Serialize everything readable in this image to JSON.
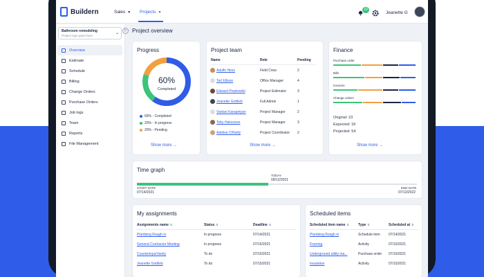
{
  "app": {
    "name": "Buildern"
  },
  "topnav": {
    "sales": "Sales",
    "projects": "Projects",
    "notifications_count": "10",
    "user_name": "Jeanette G"
  },
  "project_select": {
    "name": "Bathroom remodeling",
    "placeholder": "Project type goes here"
  },
  "page_title": "Project overview",
  "sidebar": {
    "items": [
      {
        "label": "Overview",
        "active": true
      },
      {
        "label": "Estimate"
      },
      {
        "label": "Schedule"
      },
      {
        "label": "Billing"
      },
      {
        "label": "Change Orders"
      },
      {
        "label": "Purchase Orders"
      },
      {
        "label": "Job logs"
      },
      {
        "label": "Team"
      },
      {
        "label": "Reports"
      },
      {
        "label": "File Management"
      }
    ]
  },
  "progress": {
    "title": "Progress",
    "center_value": "60%",
    "center_label": "Completed",
    "legend": [
      {
        "label": "60% - Completed",
        "color": "#2f5ce8"
      },
      {
        "label": "20% - In progress",
        "color": "#3bc47a"
      },
      {
        "label": "20% - Pending",
        "color": "#f2a03d"
      }
    ],
    "segments": [
      0.6,
      0.2,
      0.2
    ],
    "show_more": "Show more"
  },
  "team": {
    "title": "Project team",
    "headers": {
      "name": "Name",
      "role": "Role",
      "pending": "Pending"
    },
    "rows": [
      {
        "name": "Adolfo Hess",
        "role": "Field Crew",
        "pending": "2"
      },
      {
        "name": "Ted Ellison",
        "role": "Office Manager",
        "pending": "4"
      },
      {
        "name": "Edward Powlowski",
        "role": "Project Estimator",
        "pending": "3"
      },
      {
        "name": "Jeanette Gottlieb",
        "role": "Full Admin",
        "pending": "1"
      },
      {
        "name": "Vardan Karapetyan",
        "role": "Project Manager",
        "pending": "2"
      },
      {
        "name": "Toby Halvorson",
        "role": "Project Manager",
        "pending": "3"
      },
      {
        "name": "Adeline O'Reilly",
        "role": "Project Coordinator",
        "pending": "2"
      }
    ],
    "show_more": "Show more"
  },
  "finance": {
    "title": "Finance",
    "rows": [
      {
        "label": "Purchase order"
      },
      {
        "label": "Bills"
      },
      {
        "label": "Invoices"
      },
      {
        "label": "Change orders"
      }
    ],
    "colors": [
      "#3bc47a",
      "#f2a03d",
      "#1c2541",
      "#2f5ce8"
    ],
    "original": "Original: 23",
    "expected": "Expected: 18",
    "projected": "Projected: 54",
    "show_more": "Show more"
  },
  "time_graph": {
    "title": "Time graph",
    "start_label": "START DATE",
    "start_date": "07/14/2021",
    "today_label": "TODAY",
    "today_date": "09/12/2021",
    "end_label": "END DATE",
    "end_date": "07/13/2022",
    "progress": 0.47
  },
  "assignments": {
    "title": "My assignments",
    "headers": {
      "name": "Assignments name",
      "status": "Status",
      "deadline": "Deadline"
    },
    "rows": [
      {
        "name": "Plumbing Rough in",
        "status": "In progress",
        "deadline": "07/14/2021"
      },
      {
        "name": "General Contractor Meeting",
        "status": "In progress",
        "deadline": "07/15/2021"
      },
      {
        "name": "Countertops/Vanity",
        "status": "To do",
        "deadline": "07/15/2021"
      },
      {
        "name": "Jeanette Gottlieb",
        "status": "To do",
        "deadline": "07/15/2021"
      }
    ]
  },
  "scheduled": {
    "title": "Scheduled items",
    "headers": {
      "name": "Scheduled item name",
      "type": "Type",
      "at": "Scheduled at"
    },
    "rows": [
      {
        "name": "Plumbing Rough in",
        "type": "Schedule item",
        "at": "07/14/2021"
      },
      {
        "name": "Framing",
        "type": "Activity",
        "at": "07/15/2021"
      },
      {
        "name": "Underground utility ma...",
        "type": "Purchase order",
        "at": "07/15/2021"
      },
      {
        "name": "Insulation",
        "type": "Activity",
        "at": "07/15/2021"
      }
    ]
  }
}
